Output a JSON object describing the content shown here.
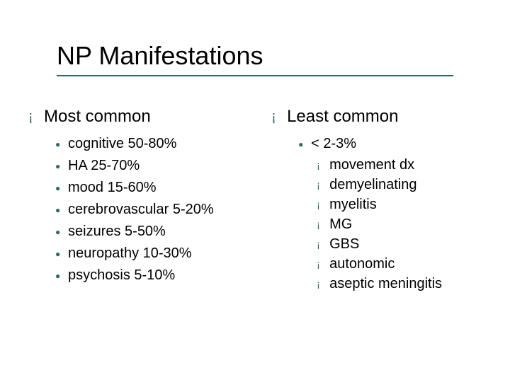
{
  "slide": {
    "title": "NP Manifestations",
    "colors": {
      "accent": "#336666",
      "text": "#000000",
      "background": "#ffffff"
    },
    "left": {
      "heading": "Most common",
      "items": [
        "cognitive 50-80%",
        "HA 25-70%",
        "mood 15-60%",
        "cerebrovascular 5-20%",
        "seizures 5-50%",
        "neuropathy 10-30%",
        "psychosis 5-10%"
      ]
    },
    "right": {
      "heading": "Least common",
      "sub_heading": "< 2-3%",
      "items": [
        "movement dx",
        "demyelinating",
        "myelitis",
        "MG",
        "GBS",
        "autonomic",
        "aseptic meningitis"
      ]
    }
  }
}
